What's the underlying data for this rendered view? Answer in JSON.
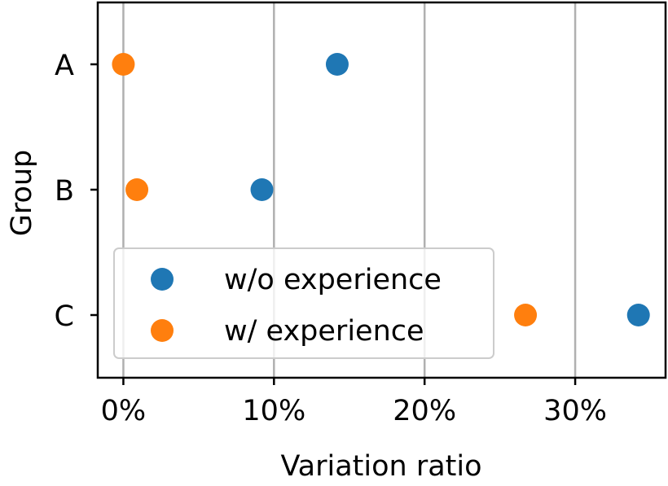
{
  "chart_data": {
    "type": "scatter",
    "xlabel": "Variation ratio",
    "ylabel": "Group",
    "categories": [
      "A",
      "B",
      "C"
    ],
    "xlim": [
      -0.017,
      0.36
    ],
    "xticks": [
      0,
      0.1,
      0.2,
      0.3
    ],
    "xtick_labels": [
      "0%",
      "10%",
      "20%",
      "30%"
    ],
    "grid": "vertical",
    "legend_position": "lower-left",
    "series": [
      {
        "name": "w/o experience",
        "color": "#1f77b4",
        "values": [
          0.142,
          0.092,
          0.342
        ]
      },
      {
        "name": "w/ experience",
        "color": "#ff7f0e",
        "values": [
          0.0,
          0.009,
          0.267
        ]
      }
    ]
  }
}
